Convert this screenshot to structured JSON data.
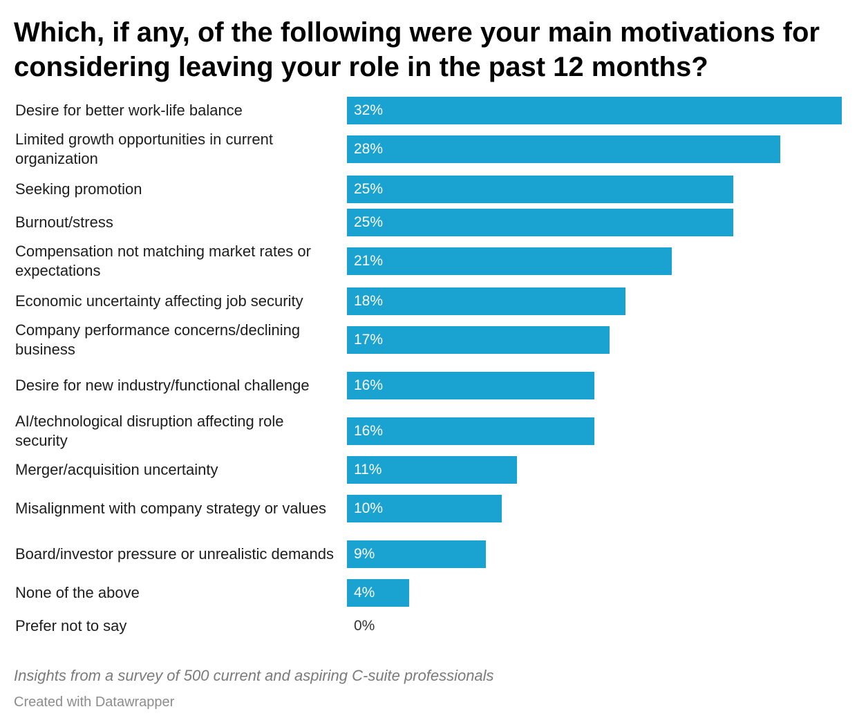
{
  "title": "Which, if any, of the following were your main motivations for considering leaving your role in the past 12 months?",
  "chart_data": {
    "type": "bar",
    "orientation": "horizontal",
    "categories": [
      "Desire for better work-life balance",
      "Limited growth opportunities in current organization",
      "Seeking promotion",
      "Burnout/stress",
      "Compensation not matching market rates or expectations",
      "Economic uncertainty affecting job security",
      "Company performance concerns/declining business",
      "Desire for new industry/functional challenge",
      "AI/technological disruption affecting role security",
      "Merger/acquisition uncertainty",
      "Misalignment with company strategy or values",
      "Board/investor pressure or unrealistic demands",
      "None of the above",
      "Prefer not to say"
    ],
    "values": [
      32,
      28,
      25,
      25,
      21,
      18,
      17,
      16,
      16,
      11,
      10,
      9,
      4,
      0
    ],
    "value_labels": [
      "32%",
      "28%",
      "25%",
      "25%",
      "21%",
      "18%",
      "17%",
      "16%",
      "16%",
      "11%",
      "10%",
      "9%",
      "4%",
      "0%"
    ],
    "xlim": [
      0,
      32
    ],
    "bar_color": "#1aa2d0",
    "value_label_color_inside": "#ffffff",
    "value_label_color_outside": "#333333",
    "grid": false
  },
  "notes": "Insights from a survey of 500 current and aspiring C-suite professionals",
  "credit": "Created with Datawrapper"
}
